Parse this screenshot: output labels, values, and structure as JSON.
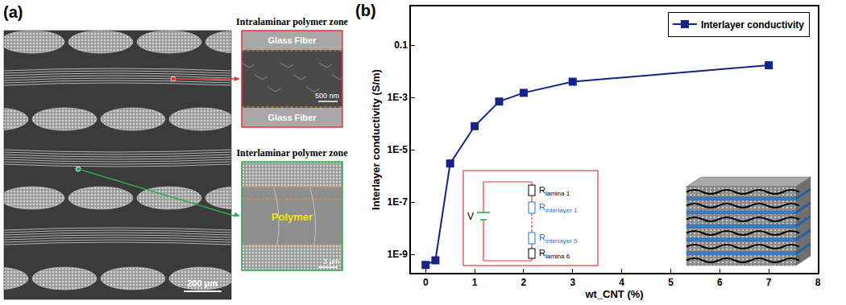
{
  "panel_a": {
    "title": "(a)",
    "scale_bar": "200 μm",
    "insets": [
      {
        "title": "Intralaminar polymer zone",
        "texts": [
          "Glass Fiber",
          "Glass Fiber"
        ],
        "scale_bar": "500 nm"
      },
      {
        "title": "Interlaminar polymer zone",
        "texts": [
          "Polymer"
        ],
        "scale_bar": "3 μm"
      }
    ]
  },
  "chart_data": {
    "type": "line",
    "title": "(b)",
    "x_label": "wt_CNT (%)",
    "y_label": "Interlayer conductivity (S/m)",
    "x": [
      0,
      0.2,
      0.5,
      1,
      1.5,
      2,
      3,
      7
    ],
    "series": [
      {
        "name": "Interlayer conductivity",
        "color": "#14238a",
        "marker": "square",
        "line_style": "solid",
        "values": [
          4e-10,
          6e-10,
          3e-06,
          8e-05,
          0.0007,
          0.0015,
          0.004,
          0.017
        ]
      }
    ],
    "xlim": [
      -0.3,
      8
    ],
    "xticks": [
      0,
      1,
      2,
      3,
      4,
      5,
      6,
      7,
      8
    ],
    "ylim": [
      2e-10,
      3
    ],
    "yticks": [
      {
        "value": 1e-09,
        "label": "1E-9"
      },
      {
        "value": 1e-07,
        "label": "1E-7"
      },
      {
        "value": 1e-05,
        "label": "1E-5"
      },
      {
        "value": 0.001,
        "label": "1E-3"
      },
      0.1
    ],
    "log": "y",
    "grid": false,
    "legend": "upper right",
    "inset": {
      "source_label": "V",
      "resistors": [
        {
          "symbol": "R",
          "subscript": "lamina 1",
          "color": "#000000"
        },
        {
          "symbol": "R",
          "subscript": "interlayer 1",
          "color": "#2f6fd6"
        },
        {
          "symbol": "R",
          "subscript": "interlayer 5",
          "color": "#2f6fd6"
        },
        {
          "symbol": "R",
          "subscript": "lamina 6",
          "color": "#000000"
        }
      ]
    }
  }
}
